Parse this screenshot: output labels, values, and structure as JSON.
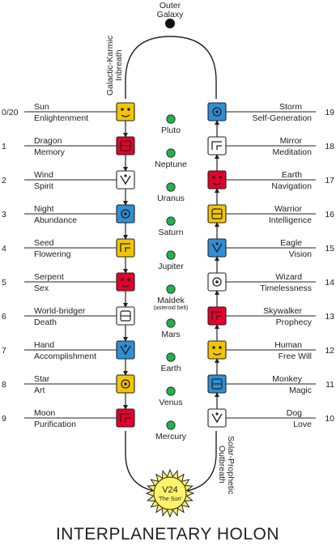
{
  "title": "INTERPLANETARY HOLON",
  "outer_galaxy": [
    "Outer",
    "Galaxy"
  ],
  "inbreath_label": [
    "Galactic-Karmic",
    "Inbreath"
  ],
  "outbreath_label": [
    "Solar-Prophetic",
    "Outbreath"
  ],
  "sun": {
    "line1": "V24",
    "line2": "'The Sun'"
  },
  "left_seals": [
    {
      "num": "0/20",
      "name": "Sun",
      "power": "Enlightenment",
      "color": "#f2c500",
      "icon": "sun-glyph"
    },
    {
      "num": "1",
      "name": "Dragon",
      "power": "Memory",
      "color": "#e3002b",
      "icon": "dragon-glyph"
    },
    {
      "num": "2",
      "name": "Wind",
      "power": "Spirit",
      "color": "#ffffff",
      "icon": "wind-glyph"
    },
    {
      "num": "3",
      "name": "Night",
      "power": "Abundance",
      "color": "#2f8fd6",
      "icon": "night-glyph"
    },
    {
      "num": "4",
      "name": "Seed",
      "power": "Flowering",
      "color": "#f2c500",
      "icon": "seed-glyph"
    },
    {
      "num": "5",
      "name": "Serpent",
      "power": "Sex",
      "color": "#e3002b",
      "icon": "serpent-glyph"
    },
    {
      "num": "6",
      "name": "World-bridger",
      "power": "Death",
      "color": "#ffffff",
      "icon": "world-bridger-glyph"
    },
    {
      "num": "7",
      "name": "Hand",
      "power": "Accomplishment",
      "color": "#2f8fd6",
      "icon": "hand-glyph"
    },
    {
      "num": "8",
      "name": "Star",
      "power": "Art",
      "color": "#f2c500",
      "icon": "star-glyph"
    },
    {
      "num": "9",
      "name": "Moon",
      "power": "Purification",
      "color": "#e3002b",
      "icon": "moon-glyph"
    }
  ],
  "right_seals": [
    {
      "num": "19",
      "name": "Storm",
      "power": "Self-Generation",
      "color": "#2f8fd6",
      "icon": "storm-glyph"
    },
    {
      "num": "18",
      "name": "Mirror",
      "power": "Meditation",
      "color": "#ffffff",
      "icon": "mirror-glyph"
    },
    {
      "num": "17",
      "name": "Earth",
      "power": "Navigation",
      "color": "#e3002b",
      "icon": "earth-glyph"
    },
    {
      "num": "16",
      "name": "Warrior",
      "power": "Intelligence",
      "color": "#f2c500",
      "icon": "warrior-glyph"
    },
    {
      "num": "15",
      "name": "Eagle",
      "power": "Vision",
      "color": "#2f8fd6",
      "icon": "eagle-glyph"
    },
    {
      "num": "14",
      "name": "Wizard",
      "power": "Timelessness",
      "color": "#ffffff",
      "icon": "wizard-glyph"
    },
    {
      "num": "13",
      "name": "Skywalker",
      "power": "Prophecy",
      "color": "#e3002b",
      "icon": "skywalker-glyph"
    },
    {
      "num": "12",
      "name": "Human",
      "power": "Free Will",
      "color": "#f2c500",
      "icon": "human-glyph"
    },
    {
      "num": "11",
      "name": "Monkey",
      "power": "Magic",
      "color": "#2f8fd6",
      "icon": "monkey-glyph"
    },
    {
      "num": "10",
      "name": "Dog",
      "power": "Love",
      "color": "#ffffff",
      "icon": "dog-glyph"
    }
  ],
  "planets": [
    {
      "name": "Pluto",
      "note": ""
    },
    {
      "name": "Neptune",
      "note": ""
    },
    {
      "name": "Uranus",
      "note": ""
    },
    {
      "name": "Saturn",
      "note": ""
    },
    {
      "name": "Jupiter",
      "note": ""
    },
    {
      "name": "Maldek",
      "note": "(asteroid belt)"
    },
    {
      "name": "Mars",
      "note": ""
    },
    {
      "name": "Earth",
      "note": ""
    },
    {
      "name": "Venus",
      "note": ""
    },
    {
      "name": "Mercury",
      "note": ""
    }
  ],
  "colors": {
    "red": "#e3002b",
    "white": "#ffffff",
    "blue": "#2f8fd6",
    "yellow": "#f2c500",
    "planet_green": "#22b14c",
    "sun_fill": "#fff36b"
  }
}
